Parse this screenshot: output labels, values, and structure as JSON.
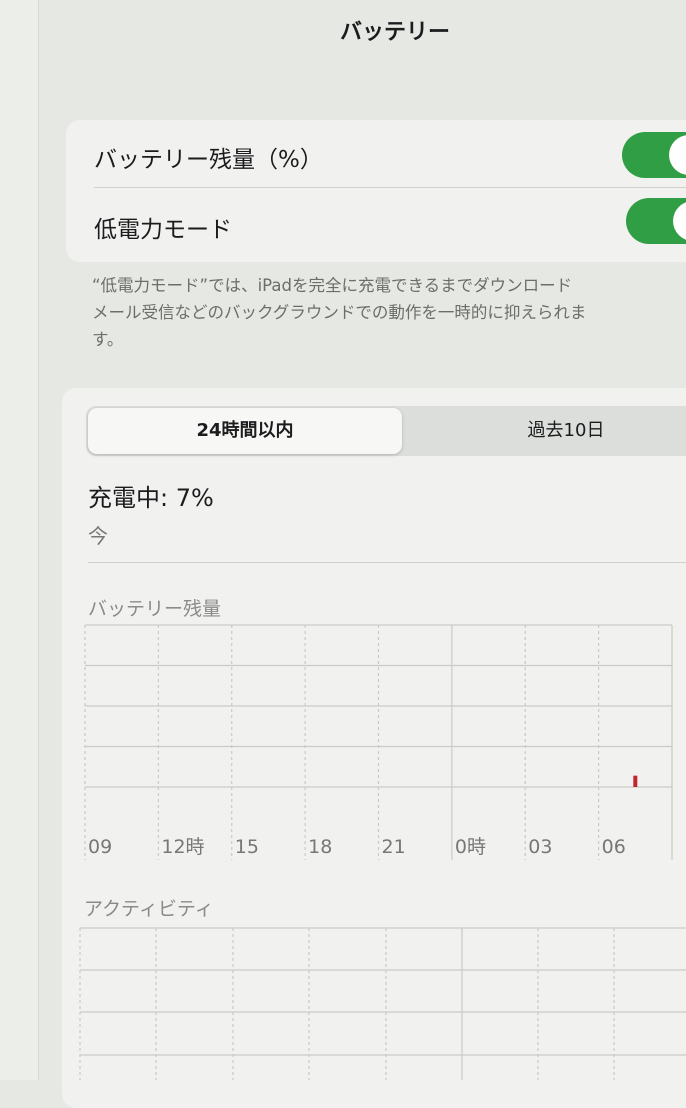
{
  "header": {
    "title": "バッテリー"
  },
  "settings": {
    "rows": [
      {
        "label": "バッテリー残量（%）",
        "on": true
      },
      {
        "label": "低電力モード",
        "on": true
      }
    ],
    "toggle_color": "#2f9e44",
    "footnote_lines": [
      "“低電力モード”では、iPadを完全に充電できるまでダウンロード",
      "メール受信などのバックグラウンドでの動作を一時的に抑えられま",
      "す。"
    ]
  },
  "usage": {
    "tabs": [
      "24時間以内",
      "過去10日"
    ],
    "selected_tab": 0,
    "status": "充電中: 7%",
    "status_time": "今",
    "battery_chart": {
      "type": "bar",
      "title": "バッテリー残量",
      "x_labels": [
        "09",
        "12時",
        "15",
        "18",
        "21",
        "0時",
        "03",
        "06"
      ],
      "ylim": [
        0,
        100
      ],
      "color": "#c0262d",
      "values": [
        null,
        null,
        null,
        null,
        null,
        null,
        null,
        null,
        null,
        null,
        null,
        null,
        null,
        null,
        null,
        null,
        null,
        null,
        null,
        null,
        null,
        null,
        7,
        null
      ]
    },
    "activity_chart": {
      "title": "アクティビティ"
    }
  }
}
